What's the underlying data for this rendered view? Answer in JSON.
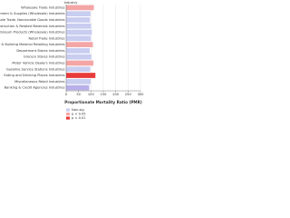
{
  "chart_data": {
    "type": "hbar",
    "title": "Industry",
    "xlabel": "Proportionate Mortality Ratio (PMR)",
    "categories": [
      "Wholesale Trade Industries",
      "Machinery, Equipment & Supplies (Wholesale) Industries",
      "Wholesale Trade, Nondurable Goods Industries",
      "Construction & Related Materials Industries",
      "Petroleum Products (Wholesale) Industries",
      "Retail Trade Industries",
      "Lumber & Building Material Retailing Industries",
      "Department Stores Industries",
      "Grocery Stores Industries",
      "Motor Vehicle Dealers Industries",
      "Gasoline Service Stations Industries",
      "Eating and Drinking Places Industries",
      "Miscellaneous Retail Industries",
      "Banking & Credit Agencies Industries"
    ],
    "values": [
      112,
      98,
      96,
      101,
      104,
      100,
      108,
      95,
      102,
      110,
      97,
      118,
      99,
      93
    ],
    "colors": [
      "#f4a6a6",
      "#c9cdf0",
      "#c9cdf0",
      "#c9cdf0",
      "#c9cdf0",
      "#c9cdf0",
      "#f4a6a6",
      "#c9cdf0",
      "#c9cdf0",
      "#f4a6a6",
      "#c9cdf0",
      "#e83a3a",
      "#c9cdf0",
      "#b8b0e8"
    ],
    "xlim": [
      0,
      300
    ],
    "xticks": [
      0,
      50,
      100,
      150,
      200,
      250,
      300
    ],
    "legend": [
      {
        "name": "Non-sig",
        "color": "#c9cdf0"
      },
      {
        "name": "p < 0.05",
        "color": "#f4a6a6"
      },
      {
        "name": "p < 0.01",
        "color": "#e83a3a"
      }
    ]
  }
}
